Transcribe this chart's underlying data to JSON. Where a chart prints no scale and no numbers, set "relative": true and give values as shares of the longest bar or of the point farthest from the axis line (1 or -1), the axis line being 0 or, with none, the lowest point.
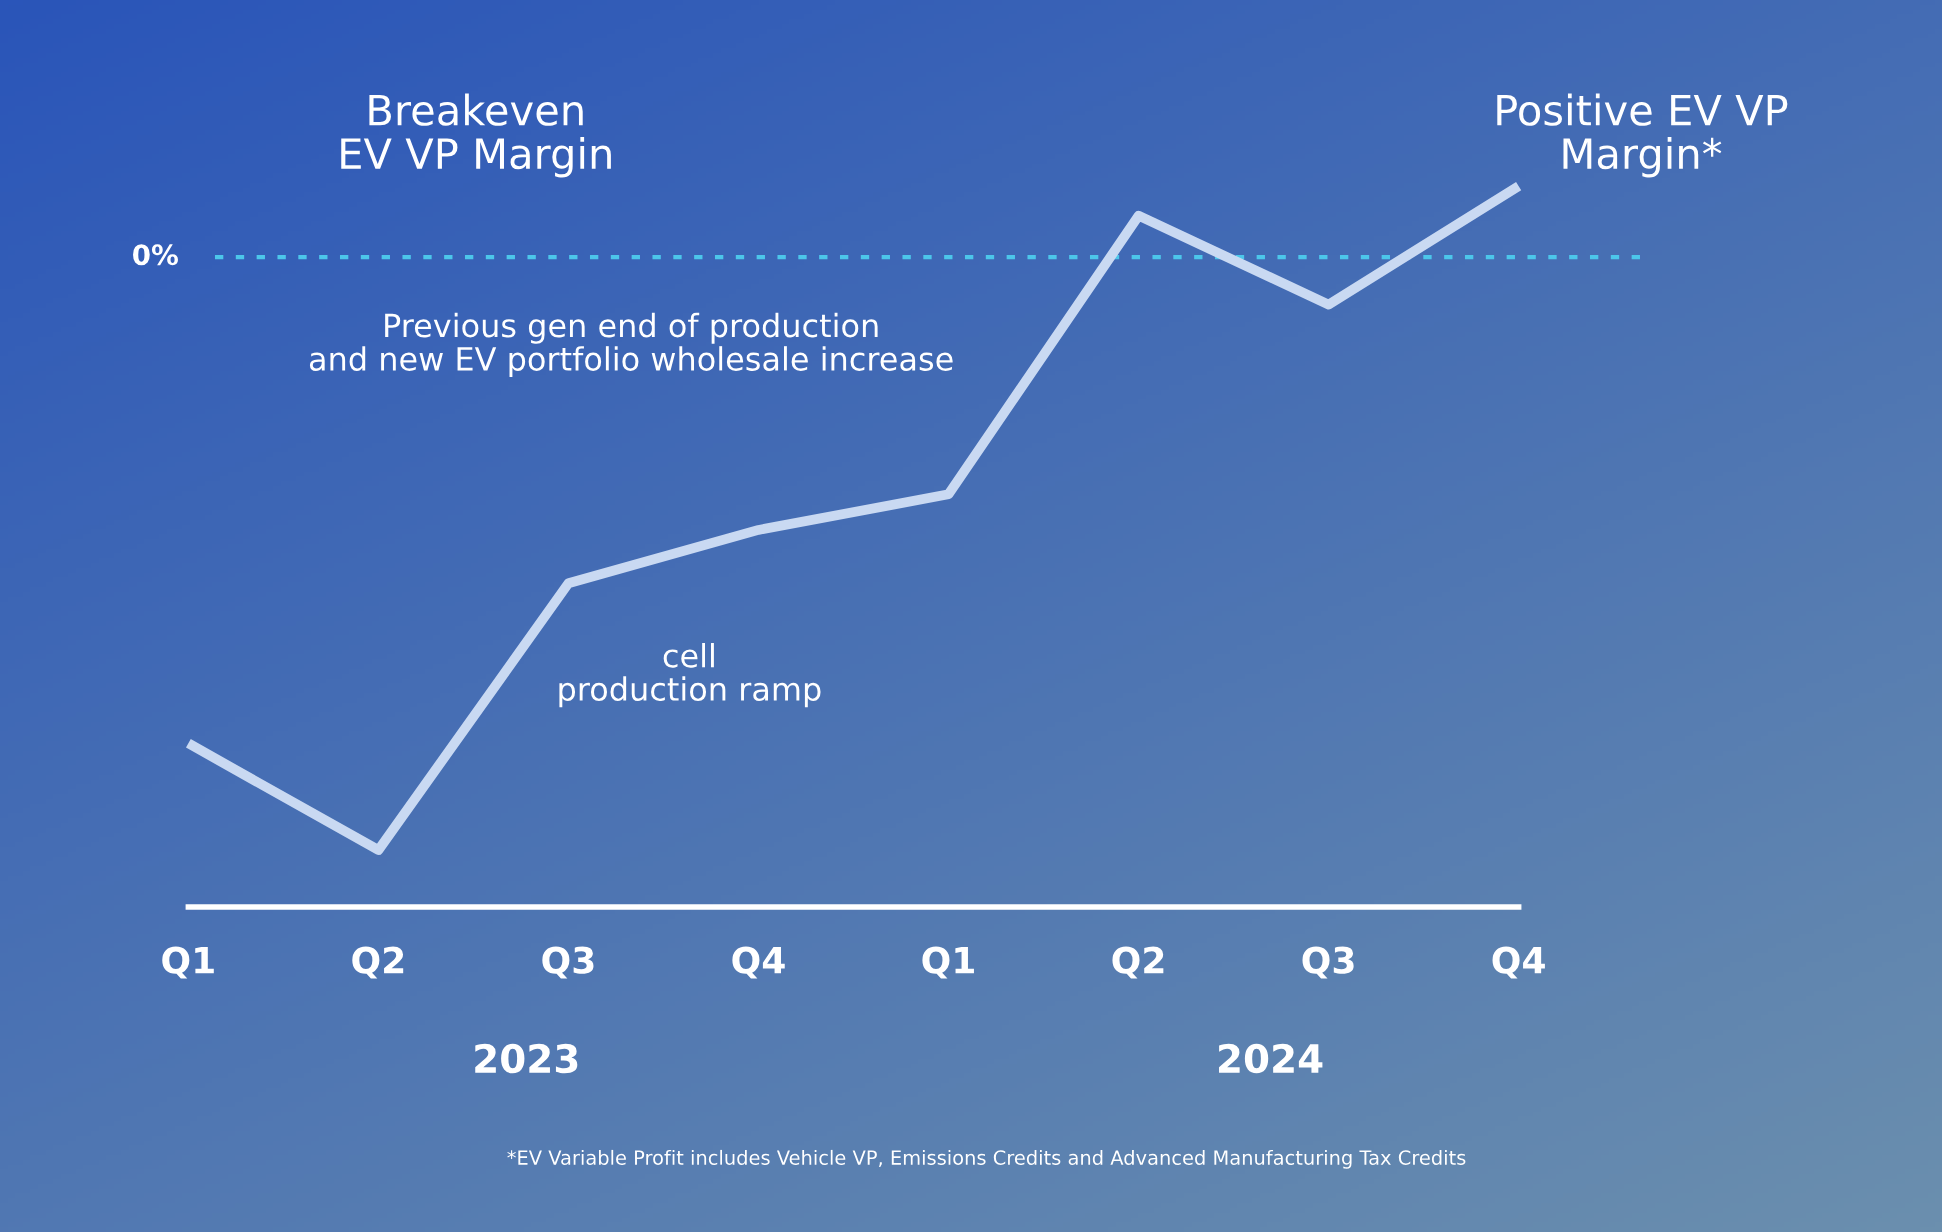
{
  "chart_data": {
    "type": "line",
    "relative": true,
    "categories": [
      "Q1",
      "Q2",
      "Q3",
      "Q4",
      "Q1",
      "Q2",
      "Q3",
      "Q4"
    ],
    "series": [
      {
        "color": "#c9d9f2",
        "values": [
          -0.82,
          -1.0,
          -0.55,
          -0.46,
          -0.4,
          0.07,
          -0.08,
          0.12
        ]
      }
    ],
    "ref_lines": [
      {
        "axis": "y",
        "value": 0,
        "label": "0%",
        "color": "#4cc6ea",
        "line_style": "dashed"
      }
    ],
    "marker": "none",
    "line_style": "solid",
    "grid": false,
    "legend": false,
    "annotations": [
      "Breakeven\nEV VP Margin",
      "Positive EV VP\nMargin*",
      "Previous gen end of production\nand new EV portfolio wholesale increase",
      "cell\nproduction ramp",
      "2023",
      "2024",
      "*EV Variable Profit includes Vehicle VP, Emissions Credits and Advanced Manufacturing Tax Credits"
    ]
  }
}
